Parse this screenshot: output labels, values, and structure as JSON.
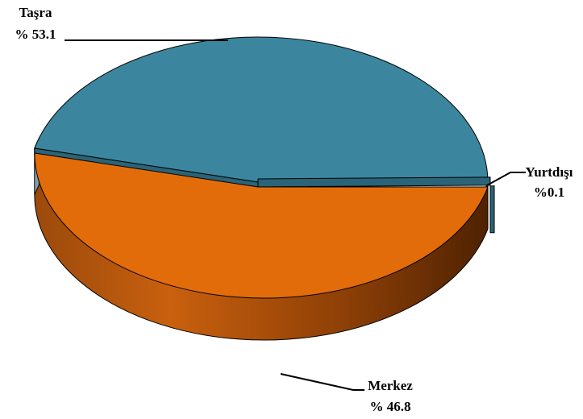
{
  "chart_data": {
    "type": "pie",
    "style": "3d",
    "slices": [
      {
        "name": "Taşra",
        "value": 53.1,
        "value_label": "% 53.1",
        "color": "#3B869E"
      },
      {
        "name": "Merkez",
        "value": 46.8,
        "value_label": "% 46.8",
        "color": "#E36C0A"
      },
      {
        "name": "Yurtdışı",
        "value": 0.1,
        "value_label": "%0.1",
        "color": "#2A6478"
      }
    ],
    "legend": "none"
  }
}
